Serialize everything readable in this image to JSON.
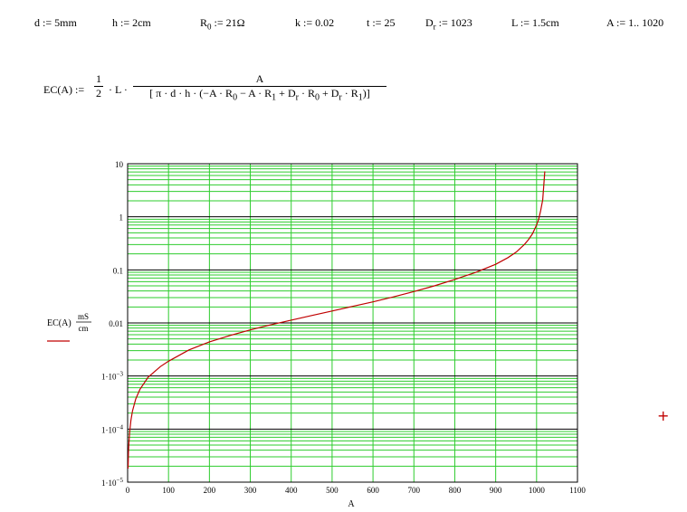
{
  "definitions": [
    {
      "id": "d",
      "name": "d",
      "sub": "",
      "value": "5mm"
    },
    {
      "id": "h",
      "name": "h",
      "sub": "",
      "value": "2cm"
    },
    {
      "id": "R0",
      "name": "R",
      "sub": "0",
      "value": "21Ω"
    },
    {
      "id": "k",
      "name": "k",
      "sub": "",
      "value": "0.02"
    },
    {
      "id": "t",
      "name": "t",
      "sub": "",
      "value": "25"
    },
    {
      "id": "Dr",
      "name": "D",
      "sub": "r",
      "value": "1023"
    },
    {
      "id": "L",
      "name": "L",
      "sub": "",
      "value": "1.5cm"
    },
    {
      "id": "A",
      "name": "A",
      "sub": "",
      "value": "1.. 1020"
    }
  ],
  "formula": {
    "lhs": "EC(A) :=",
    "coef_num": "1",
    "coef_den": "2",
    "times_L": "· L ·",
    "numerator": "A",
    "den_open": "[ π · d · h · (−A · R",
    "den_s1": "0",
    "den_m1": " − A · R",
    "den_s2": "1",
    "den_m2": " + D",
    "den_s3": "r",
    "den_m3": " · R",
    "den_s4": "0",
    "den_m4": " + D",
    "den_s5": "r",
    "den_m5": " · R",
    "den_s6": "1",
    "den_close": ")]"
  },
  "chart_data": {
    "type": "line",
    "xlabel": "A",
    "ylabel": "EC(A)",
    "ylabel_unit_num": "mS",
    "ylabel_unit_den": "cm",
    "xlim": [
      0,
      1100
    ],
    "ylim": [
      1e-05,
      10
    ],
    "yscale": "log",
    "grid": true,
    "x_ticks": [
      0,
      100,
      200,
      300,
      400,
      500,
      600,
      700,
      800,
      900,
      1000,
      1100
    ],
    "y_ticks": [
      {
        "value": 10,
        "label": "10"
      },
      {
        "value": 1,
        "label": "1"
      },
      {
        "value": 0.1,
        "label": "0.1"
      },
      {
        "value": 0.01,
        "label": "0.01"
      },
      {
        "value": 0.001,
        "label": "1·10",
        "exp": "−3"
      },
      {
        "value": 0.0001,
        "label": "1·10",
        "exp": "−4"
      },
      {
        "value": 1e-05,
        "label": "1·10",
        "exp": "−5"
      }
    ],
    "series": [
      {
        "color": "#c00000",
        "x": [
          1,
          2,
          3,
          5,
          8,
          12,
          20,
          30,
          50,
          80,
          100,
          150,
          200,
          250,
          300,
          350,
          400,
          450,
          500,
          550,
          600,
          650,
          700,
          750,
          800,
          850,
          900,
          930,
          950,
          970,
          980,
          990,
          1000,
          1005,
          1010,
          1015,
          1020
        ],
        "y": [
          1.8e-05,
          3.6e-05,
          5.4e-05,
          9e-05,
          0.000145,
          0.00022,
          0.00037,
          0.00056,
          0.00095,
          0.0015,
          0.0019,
          0.0031,
          0.0044,
          0.0058,
          0.0074,
          0.0092,
          0.0113,
          0.0138,
          0.0168,
          0.0205,
          0.025,
          0.031,
          0.039,
          0.05,
          0.066,
          0.089,
          0.127,
          0.17,
          0.215,
          0.3,
          0.37,
          0.48,
          0.7,
          0.9,
          1.3,
          2.1,
          7.2
        ]
      }
    ]
  },
  "colors": {
    "grid": "#2ecc2e",
    "decade_grid": "#000000",
    "line": "#c00000",
    "cursor": "#c00000"
  },
  "cursor_symbol": "+"
}
